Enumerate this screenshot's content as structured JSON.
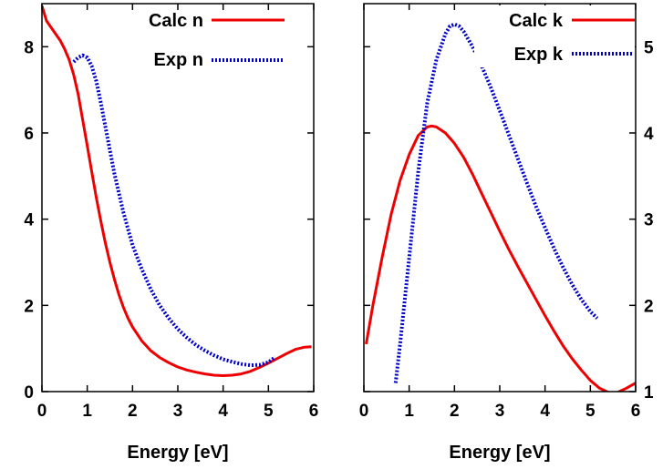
{
  "chart_data": [
    {
      "type": "line",
      "title": "",
      "xlabel": "Energy [eV]",
      "ylabel": "",
      "xlim": [
        0,
        6
      ],
      "ylim": [
        0,
        9
      ],
      "xticks": [
        "0",
        "1",
        "2",
        "3",
        "4",
        "5",
        "6"
      ],
      "yticks": [
        "0",
        "2",
        "4",
        "6",
        "8"
      ],
      "y_axis_side": "left",
      "legend_position": "top-right",
      "grid": false,
      "series": [
        {
          "name": "Calc n",
          "color": "#ee0000",
          "style": "solid",
          "x": [
            0.0,
            0.1,
            0.2,
            0.3,
            0.4,
            0.5,
            0.6,
            0.7,
            0.8,
            0.9,
            1.0,
            1.1,
            1.2,
            1.3,
            1.4,
            1.5,
            1.6,
            1.7,
            1.8,
            1.9,
            2.0,
            2.2,
            2.4,
            2.6,
            2.8,
            3.0,
            3.2,
            3.4,
            3.6,
            3.8,
            4.0,
            4.2,
            4.4,
            4.6,
            4.8,
            5.0,
            5.2,
            5.4,
            5.6,
            5.8,
            5.95
          ],
          "y": [
            8.95,
            8.6,
            8.45,
            8.3,
            8.15,
            7.95,
            7.7,
            7.35,
            6.9,
            6.3,
            5.7,
            5.1,
            4.5,
            3.95,
            3.45,
            3.0,
            2.6,
            2.25,
            1.95,
            1.7,
            1.5,
            1.18,
            0.95,
            0.79,
            0.67,
            0.57,
            0.5,
            0.45,
            0.41,
            0.38,
            0.37,
            0.38,
            0.41,
            0.47,
            0.56,
            0.66,
            0.77,
            0.88,
            0.98,
            1.03,
            1.04
          ]
        },
        {
          "name": "Exp n",
          "color": "#0000cc",
          "style": "dotted",
          "x": [
            0.7,
            0.8,
            0.9,
            1.0,
            1.1,
            1.2,
            1.3,
            1.4,
            1.5,
            1.6,
            1.8,
            2.0,
            2.2,
            2.4,
            2.6,
            2.8,
            3.0,
            3.2,
            3.4,
            3.6,
            3.8,
            4.0,
            4.2,
            4.4,
            4.6,
            4.8,
            5.0,
            5.15
          ],
          "y": [
            7.65,
            7.75,
            7.8,
            7.75,
            7.55,
            7.2,
            6.7,
            6.15,
            5.6,
            5.05,
            4.15,
            3.4,
            2.85,
            2.38,
            2.0,
            1.7,
            1.45,
            1.25,
            1.08,
            0.95,
            0.84,
            0.75,
            0.69,
            0.64,
            0.61,
            0.62,
            0.68,
            0.8
          ]
        }
      ]
    },
    {
      "type": "line",
      "title": "",
      "xlabel": "Energy [eV]",
      "ylabel": "",
      "xlim": [
        0,
        6
      ],
      "ylim": [
        1,
        5.5
      ],
      "xticks": [
        "0",
        "1",
        "2",
        "3",
        "4",
        "5",
        "6"
      ],
      "yticks": [
        "1",
        "2",
        "3",
        "4",
        "5"
      ],
      "y_axis_side": "right",
      "legend_position": "top-right",
      "grid": false,
      "series": [
        {
          "name": "Calc k",
          "color": "#ee0000",
          "style": "solid",
          "x": [
            0.05,
            0.2,
            0.4,
            0.6,
            0.8,
            1.0,
            1.2,
            1.4,
            1.5,
            1.6,
            1.8,
            2.0,
            2.2,
            2.4,
            2.6,
            2.8,
            3.0,
            3.2,
            3.4,
            3.6,
            3.8,
            4.0,
            4.2,
            4.4,
            4.6,
            4.8,
            5.0,
            5.2,
            5.4,
            5.5,
            5.6,
            5.8,
            6.0
          ],
          "y": [
            1.55,
            2.0,
            2.55,
            3.05,
            3.45,
            3.75,
            3.97,
            4.07,
            4.08,
            4.07,
            4.0,
            3.88,
            3.72,
            3.52,
            3.3,
            3.08,
            2.86,
            2.65,
            2.45,
            2.26,
            2.07,
            1.88,
            1.7,
            1.53,
            1.38,
            1.25,
            1.13,
            1.04,
            0.99,
            0.98,
            0.99,
            1.04,
            1.1
          ]
        },
        {
          "name": "Exp k",
          "color": "#0000cc",
          "style": "dotted",
          "x": [
            0.7,
            0.8,
            1.0,
            1.2,
            1.4,
            1.6,
            1.8,
            1.9,
            2.0,
            2.1,
            2.2,
            2.4,
            2.6,
            2.8,
            3.0,
            3.2,
            3.4,
            3.6,
            3.8,
            4.0,
            4.2,
            4.4,
            4.6,
            4.8,
            5.0,
            5.15
          ],
          "y": [
            1.1,
            1.55,
            2.55,
            3.55,
            4.35,
            4.85,
            5.15,
            5.24,
            5.26,
            5.24,
            5.18,
            5.0,
            4.78,
            4.53,
            4.26,
            3.98,
            3.7,
            3.42,
            3.15,
            2.9,
            2.66,
            2.44,
            2.24,
            2.07,
            1.93,
            1.85
          ]
        }
      ]
    }
  ]
}
